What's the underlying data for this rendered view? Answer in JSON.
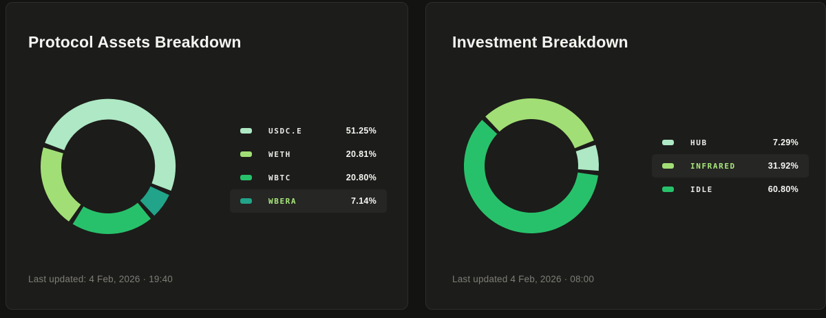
{
  "cards": [
    {
      "title": "Protocol Assets Breakdown",
      "footer": "Last updated: 4 Feb, 2026 · 19:40"
    },
    {
      "title": "Investment Breakdown",
      "footer": "Last updated 4 Feb, 2026 · 08:00"
    }
  ],
  "chart_data": [
    {
      "type": "pie",
      "variant": "donut",
      "title": "Protocol Assets Breakdown",
      "legend_position": "right",
      "start_angle": 288.5,
      "render_order": [
        0,
        3,
        2,
        1
      ],
      "slices": [
        {
          "label": "USDC.E",
          "value": 51.25,
          "display": "51.25%",
          "color": "#aee8c4",
          "highlighted": false
        },
        {
          "label": "WETH",
          "value": 20.81,
          "display": "20.81%",
          "color": "#a2de76",
          "highlighted": false
        },
        {
          "label": "WBTC",
          "value": 20.8,
          "display": "20.80%",
          "color": "#28c16b",
          "highlighted": false
        },
        {
          "label": "WBERA",
          "value": 7.14,
          "display": "7.14%",
          "color": "#21a489",
          "highlighted": true
        }
      ]
    },
    {
      "type": "pie",
      "variant": "donut",
      "title": "Investment Breakdown",
      "legend_position": "right",
      "start_angle": 315,
      "render_order": [
        1,
        0,
        2
      ],
      "slices": [
        {
          "label": "HUB",
          "value": 7.29,
          "display": "7.29%",
          "color": "#aee8c4",
          "highlighted": false
        },
        {
          "label": "INFRARED",
          "value": 31.92,
          "display": "31.92%",
          "color": "#a2de76",
          "highlighted": true
        },
        {
          "label": "IDLE",
          "value": 60.8,
          "display": "60.80%",
          "color": "#28c16b",
          "highlighted": false
        }
      ]
    }
  ]
}
